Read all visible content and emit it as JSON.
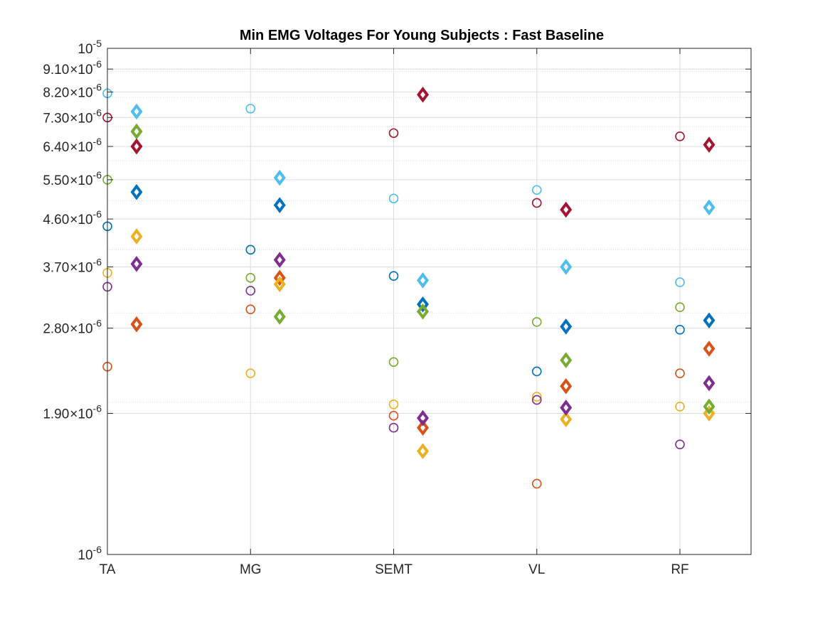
{
  "chart_data": {
    "type": "scatter",
    "title": "Min EMG Voltages For Young Subjects : Fast Baseline",
    "xlabel": "",
    "ylabel": "",
    "categories": [
      "TA",
      "MG",
      "SEMT",
      "VL",
      "RF"
    ],
    "y_scale": "log",
    "ylim": [
      1e-06,
      1e-05
    ],
    "y_ticks": [
      {
        "value": 1e-06,
        "mantissa": "",
        "exponent": "-6"
      },
      {
        "value": 1.9e-06,
        "mantissa": "1.90",
        "exponent": "-6"
      },
      {
        "value": 2.8e-06,
        "mantissa": "2.80",
        "exponent": "-6"
      },
      {
        "value": 3.7e-06,
        "mantissa": "3.70",
        "exponent": "-6"
      },
      {
        "value": 4.6e-06,
        "mantissa": "4.60",
        "exponent": "-6"
      },
      {
        "value": 5.5e-06,
        "mantissa": "5.50",
        "exponent": "-6"
      },
      {
        "value": 6.4e-06,
        "mantissa": "6.40",
        "exponent": "-6"
      },
      {
        "value": 7.3e-06,
        "mantissa": "7.30",
        "exponent": "-6"
      },
      {
        "value": 8.2e-06,
        "mantissa": "8.20",
        "exponent": "-6"
      },
      {
        "value": 9.1e-06,
        "mantissa": "9.10",
        "exponent": "-6"
      },
      {
        "value": 1e-05,
        "mantissa": "",
        "exponent": "-5"
      }
    ],
    "y_minor_grid": [
      2e-06,
      3e-06,
      4e-06,
      5e-06,
      6e-06,
      7e-06,
      8e-06,
      9e-06
    ],
    "grid": true,
    "legend": "none",
    "marker_groups": [
      {
        "marker": "circle",
        "offset": 0
      },
      {
        "marker": "diamond",
        "offset": 1
      }
    ],
    "series": [
      {
        "color": "#0072BD",
        "circle": [
          4.45e-06,
          4e-06,
          3.55e-06,
          2.3e-06,
          2.78e-06
        ],
        "diamond": [
          5.2e-06,
          4.9e-06,
          3.12e-06,
          2.82e-06,
          2.9e-06
        ]
      },
      {
        "color": "#D95319",
        "circle": [
          2.35e-06,
          3.05e-06,
          1.88e-06,
          1.38e-06,
          2.28e-06
        ],
        "diamond": [
          2.85e-06,
          3.52e-06,
          1.78e-06,
          2.15e-06,
          2.55e-06
        ]
      },
      {
        "color": "#EDB120",
        "circle": [
          3.6e-06,
          2.28e-06,
          1.98e-06,
          2.05e-06,
          1.96e-06
        ],
        "diamond": [
          4.25e-06,
          3.42e-06,
          1.6e-06,
          1.85e-06,
          1.9e-06
        ]
      },
      {
        "color": "#7E2F8E",
        "circle": [
          3.38e-06,
          3.32e-06,
          1.78e-06,
          2.02e-06,
          1.65e-06
        ],
        "diamond": [
          3.75e-06,
          3.82e-06,
          1.86e-06,
          1.95e-06,
          2.18e-06
        ]
      },
      {
        "color": "#77AC30",
        "circle": [
          5.5e-06,
          3.52e-06,
          2.4e-06,
          2.88e-06,
          3.08e-06
        ],
        "diamond": [
          6.85e-06,
          2.95e-06,
          3.02e-06,
          2.42e-06,
          1.96e-06
        ]
      },
      {
        "color": "#4DBEEE",
        "circle": [
          8.15e-06,
          7.6e-06,
          5.05e-06,
          5.25e-06,
          3.45e-06
        ],
        "diamond": [
          7.5e-06,
          5.55e-06,
          3.48e-06,
          3.7e-06,
          4.85e-06
        ]
      },
      {
        "color": "#A2142F",
        "circle": [
          7.3e-06,
          null,
          6.8e-06,
          4.95e-06,
          6.7e-06
        ],
        "diamond": [
          6.4e-06,
          null,
          8.1e-06,
          4.8e-06,
          6.45e-06
        ]
      }
    ]
  }
}
